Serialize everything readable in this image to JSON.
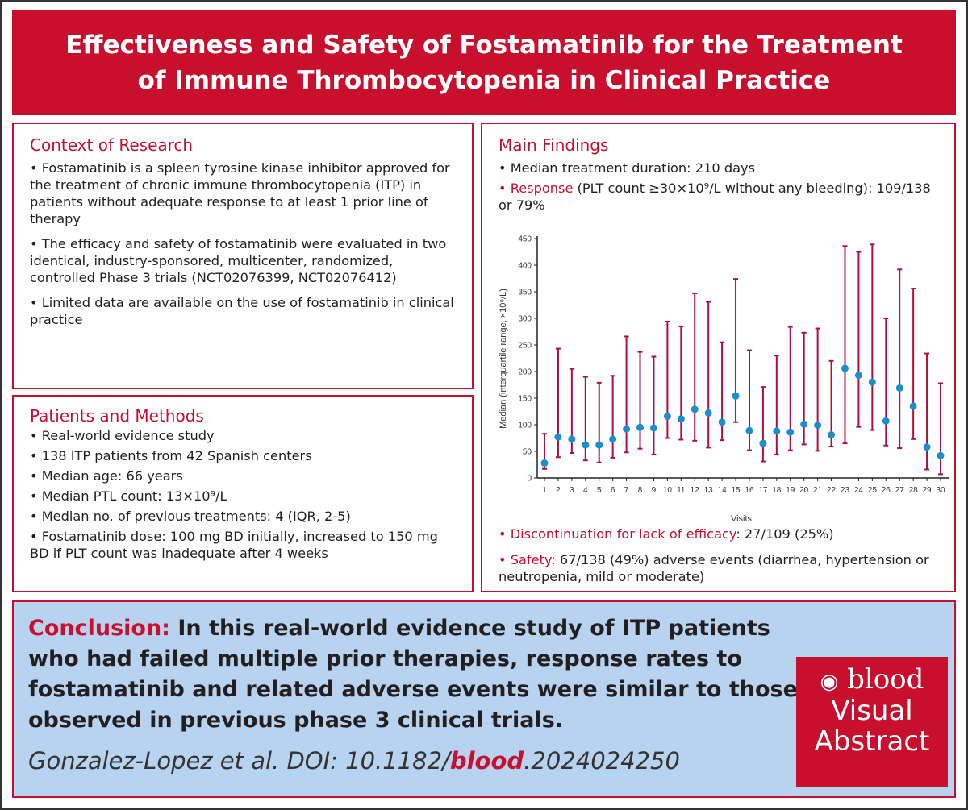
{
  "title": {
    "line1": "Effectiveness and Safety of Fostamatinib for the Treatment",
    "line2": "of Immune Thrombocytopenia in Clinical Practice"
  },
  "context": {
    "heading": "Context of Research",
    "bullets": [
      "• Fostamatinib is a spleen tyrosine kinase inhibitor approved for the treatment of chronic immune thrombocytopenia (ITP) in patients without adequate response to at least 1 prior line of therapy",
      "• The efficacy and safety of fostamatinib were evaluated in two identical, industry-sponsored, multicenter, randomized, controlled Phase 3 trials (NCT02076399, NCT02076412)",
      "• Limited data are available on the use of fostamatinib in clinical practice"
    ]
  },
  "methods": {
    "heading": "Patients and Methods",
    "bullets": [
      "• Real-world evidence study",
      "• 138 ITP patients from 42 Spanish centers",
      "• Median age: 66 years",
      "• Median PTL count: 13×10⁹/L",
      "• Median no. of previous treatments: 4 (IQR, 2-5)",
      "• Fostamatinib dose: 100 mg BD initially, increased to 150 mg BD if PLT count was inadequate after 4 weeks"
    ]
  },
  "findings": {
    "heading": "Main Findings",
    "duration": "• Median treatment duration: 210 days",
    "response_label": "• Response",
    "response_text": " (PLT count ≥30×10⁹/L without any bleeding): 109/138 or 79%",
    "discont_label": "• Discontinuation for lack of efficacy",
    "discont_text": ": 27/109 (25%)",
    "safety_label": "• Safety",
    "safety_text": ": 67/138 (49%) adverse events (diarrhea, hypertension or neutropenia, mild or moderate)"
  },
  "chart_data": {
    "type": "scatter",
    "xlabel": "Visits",
    "ylabel": "Median (interquartile range, ×10⁹/L)",
    "ylim": [
      0,
      450
    ],
    "yticks": [
      0,
      50,
      100,
      150,
      200,
      250,
      300,
      350,
      400,
      450
    ],
    "x": [
      1,
      2,
      3,
      4,
      5,
      6,
      7,
      8,
      9,
      10,
      11,
      12,
      13,
      14,
      15,
      16,
      17,
      18,
      19,
      20,
      21,
      22,
      23,
      24,
      25,
      26,
      27,
      28,
      29,
      30
    ],
    "median": [
      28,
      77,
      73,
      62,
      62,
      73,
      92,
      95,
      94,
      116,
      111,
      129,
      122,
      105,
      154,
      89,
      65,
      88,
      86,
      101,
      99,
      81,
      206,
      193,
      180,
      107,
      169,
      135,
      58,
      42
    ],
    "q1": [
      17,
      39,
      47,
      33,
      29,
      38,
      48,
      55,
      44,
      75,
      72,
      70,
      57,
      71,
      105,
      52,
      31,
      44,
      52,
      63,
      51,
      59,
      65,
      96,
      90,
      61,
      56,
      73,
      16,
      7
    ],
    "q3": [
      83,
      243,
      205,
      190,
      179,
      192,
      266,
      237,
      228,
      294,
      285,
      347,
      331,
      255,
      374,
      240,
      171,
      230,
      284,
      273,
      281,
      220,
      436,
      425,
      439,
      300,
      392,
      356,
      234,
      178
    ],
    "colors": {
      "median": "#1a8fd0",
      "iqr": "#b0103a"
    }
  },
  "conclusion": {
    "label": "Conclusion:",
    "text": " In this real-world evidence study of ITP patients who had failed multiple prior therapies, response rates to fostamatinib and related adverse events were similar to those observed in previous phase 3 clinical trials.",
    "cite_pre": "Gonzalez-Lopez et al. DOI: 10.1182/",
    "cite_blood": "blood",
    "cite_post": ".2024024250"
  },
  "logo": {
    "brand": "blood",
    "line1": "Visual",
    "line2": "Abstract"
  },
  "colors": {
    "accent": "#c8102e",
    "conclusion_bg": "#b7d3ef"
  }
}
